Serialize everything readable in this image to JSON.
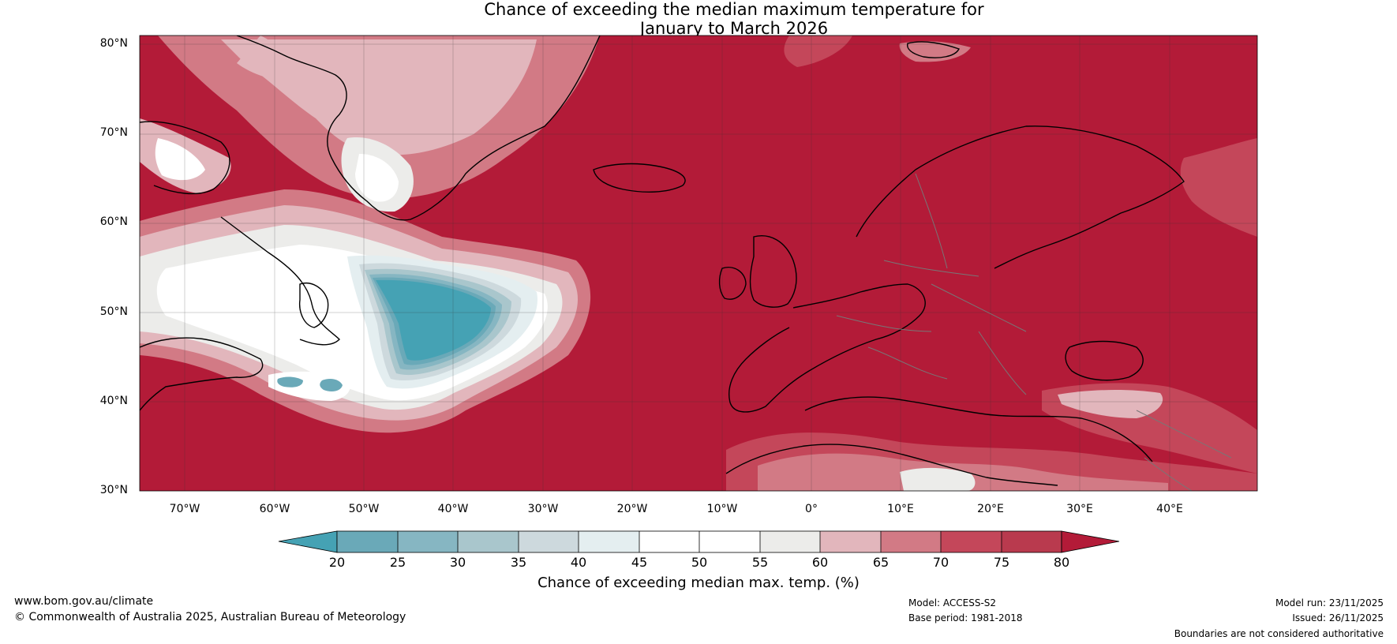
{
  "title": {
    "line1": "Chance of exceeding the median maximum temperature for",
    "line2": "January to March 2026"
  },
  "colors": {
    "very_high": "#b31b38",
    "high": "#c4475a",
    "mid_high": "#d27a85",
    "low_high": "#e2b6bc",
    "neutral": "#ececea",
    "white": "#ffffff",
    "pale_blue": "#e4eef0",
    "blue_1": "#cdd9dd",
    "blue_2": "#a9c6cc",
    "blue_3": "#86b6c2",
    "blue_4": "#6aa9b8",
    "teal": "#45a2b4"
  },
  "map": {
    "lat_labels": [
      "80°N",
      "70°N",
      "60°N",
      "50°N",
      "40°N",
      "30°N"
    ],
    "lon_labels": [
      "70°W",
      "60°W",
      "50°W",
      "40°W",
      "30°W",
      "20°W",
      "10°W",
      "0°",
      "10°E",
      "20°E",
      "30°E",
      "40°E"
    ]
  },
  "colorbar": {
    "ticks": [
      "20",
      "25",
      "30",
      "35",
      "40",
      "45",
      "50",
      "55",
      "60",
      "65",
      "70",
      "75",
      "80"
    ],
    "label": "Chance of exceeding median max. temp. (%)"
  },
  "footer": {
    "website": "www.bom.gov.au/climate",
    "copyright": "© Commonwealth of Australia 2025, Australian Bureau of Meteorology",
    "model": "Model: ACCESS-S2",
    "base_period": "Base period: 1981-2018",
    "model_run": "Model run: 23/11/2025",
    "issued": "Issued: 26/11/2025",
    "disclaimer": "Boundaries are not considered authoritative"
  }
}
